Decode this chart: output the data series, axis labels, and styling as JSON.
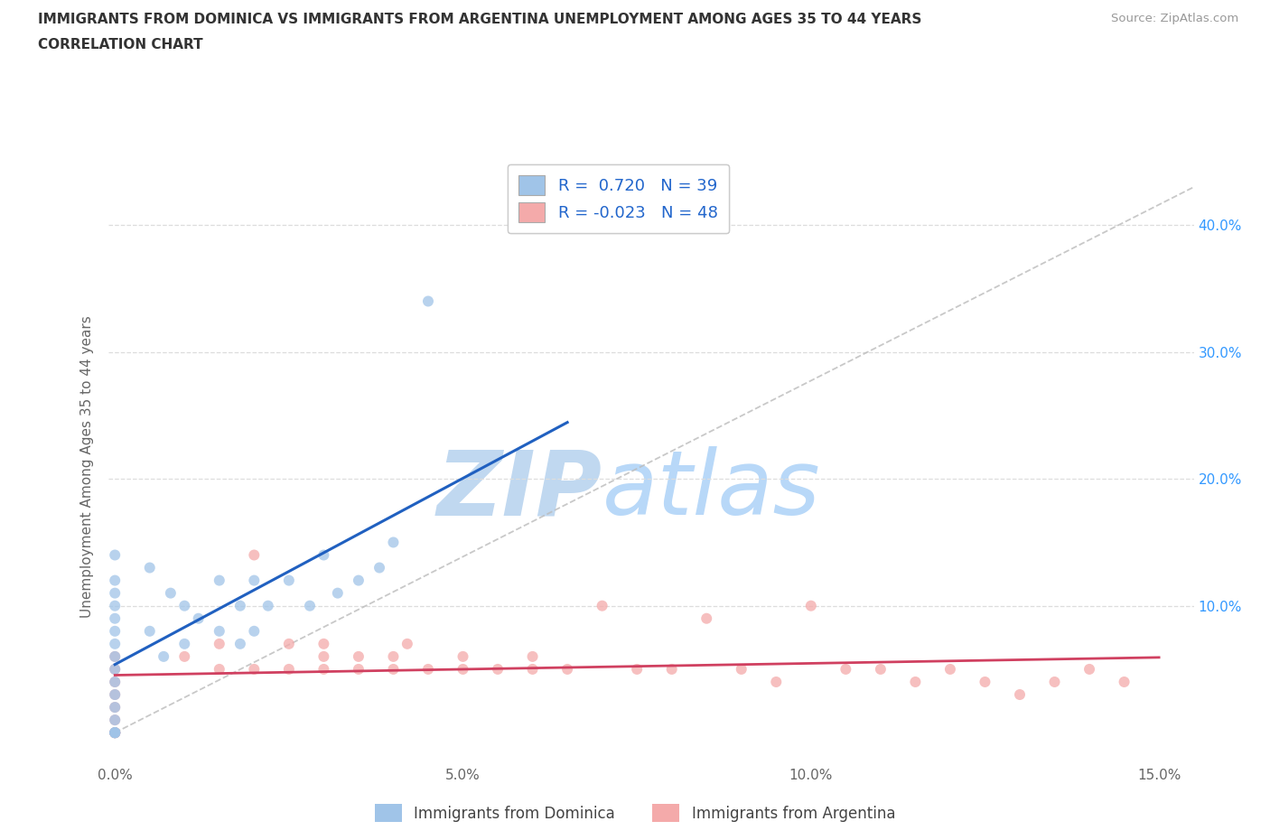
{
  "title_line1": "IMMIGRANTS FROM DOMINICA VS IMMIGRANTS FROM ARGENTINA UNEMPLOYMENT AMONG AGES 35 TO 44 YEARS",
  "title_line2": "CORRELATION CHART",
  "source": "Source: ZipAtlas.com",
  "ylabel": "Unemployment Among Ages 35 to 44 years",
  "xlim": [
    -0.001,
    0.155
  ],
  "ylim": [
    -0.025,
    0.445
  ],
  "dominica_color": "#a0c4e8",
  "argentina_color": "#f4aaaa",
  "dominica_line_color": "#2060c0",
  "argentina_line_color": "#d04060",
  "dominica_R": 0.72,
  "dominica_N": 39,
  "argentina_R": -0.023,
  "argentina_N": 48,
  "dominica_x": [
    0.0,
    0.0,
    0.0,
    0.0,
    0.0,
    0.0,
    0.0,
    0.0,
    0.0,
    0.0,
    0.0,
    0.0,
    0.0,
    0.0,
    0.0,
    0.0,
    0.0,
    0.005,
    0.005,
    0.007,
    0.008,
    0.01,
    0.01,
    0.012,
    0.015,
    0.015,
    0.018,
    0.018,
    0.02,
    0.02,
    0.022,
    0.025,
    0.028,
    0.03,
    0.032,
    0.035,
    0.038,
    0.04,
    0.045
  ],
  "dominica_y": [
    0.0,
    0.0,
    0.0,
    0.0,
    0.01,
    0.02,
    0.03,
    0.04,
    0.05,
    0.06,
    0.07,
    0.08,
    0.09,
    0.1,
    0.11,
    0.12,
    0.14,
    0.08,
    0.13,
    0.06,
    0.11,
    0.07,
    0.1,
    0.09,
    0.08,
    0.12,
    0.07,
    0.1,
    0.08,
    0.12,
    0.1,
    0.12,
    0.1,
    0.14,
    0.11,
    0.12,
    0.13,
    0.15,
    0.34
  ],
  "argentina_x": [
    0.0,
    0.0,
    0.0,
    0.0,
    0.0,
    0.0,
    0.0,
    0.0,
    0.0,
    0.0,
    0.01,
    0.015,
    0.015,
    0.02,
    0.02,
    0.025,
    0.025,
    0.03,
    0.03,
    0.03,
    0.035,
    0.035,
    0.04,
    0.04,
    0.042,
    0.045,
    0.05,
    0.05,
    0.055,
    0.06,
    0.06,
    0.065,
    0.07,
    0.075,
    0.08,
    0.085,
    0.09,
    0.095,
    0.1,
    0.105,
    0.11,
    0.115,
    0.12,
    0.125,
    0.13,
    0.135,
    0.14,
    0.145
  ],
  "argentina_y": [
    0.0,
    0.0,
    0.0,
    0.0,
    0.01,
    0.02,
    0.03,
    0.04,
    0.05,
    0.06,
    0.06,
    0.05,
    0.07,
    0.05,
    0.14,
    0.05,
    0.07,
    0.05,
    0.06,
    0.07,
    0.05,
    0.06,
    0.05,
    0.06,
    0.07,
    0.05,
    0.06,
    0.05,
    0.05,
    0.05,
    0.06,
    0.05,
    0.1,
    0.05,
    0.05,
    0.09,
    0.05,
    0.04,
    0.1,
    0.05,
    0.05,
    0.04,
    0.05,
    0.04,
    0.03,
    0.04,
    0.05,
    0.04
  ],
  "diag_line_color": "#bbbbbb",
  "grid_color": "#dddddd",
  "title_color": "#333333",
  "source_color": "#999999",
  "tick_color": "#666666",
  "right_tick_color": "#3399ff",
  "watermark_zip_color": "#c0d8f0",
  "watermark_atlas_color": "#b8d8f8"
}
